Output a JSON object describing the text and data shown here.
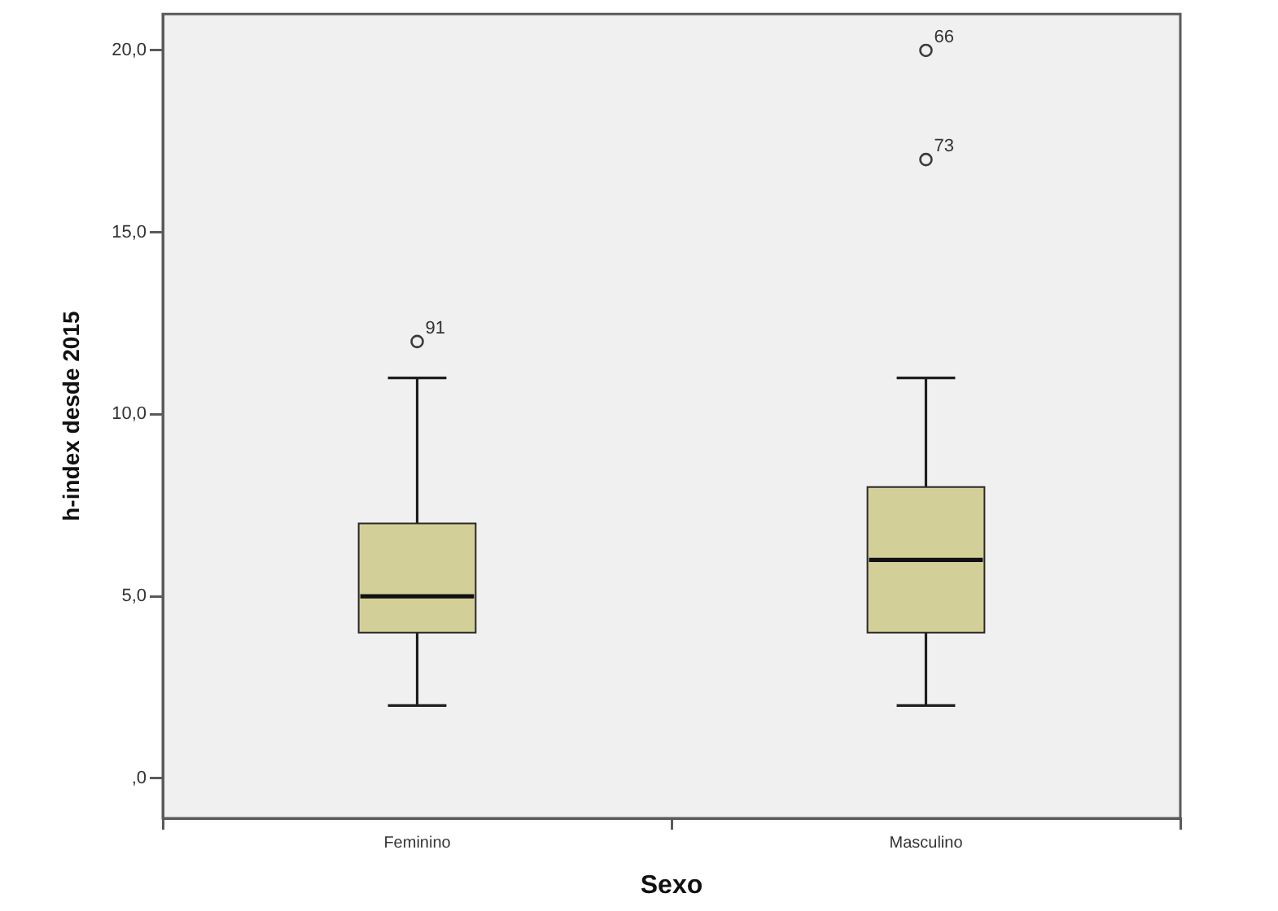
{
  "chart_data": {
    "type": "box",
    "xlabel": "Sexo",
    "ylabel": "h-index desde 2015",
    "categories": [
      "Feminino",
      "Masculino"
    ],
    "color": "#d3cf98",
    "boxes": [
      {
        "low": 2,
        "q1": 4,
        "median": 5,
        "q3": 7,
        "high": 11,
        "outliers": [
          12
        ]
      },
      {
        "low": 2,
        "q1": 4,
        "median": 6,
        "q3": 8,
        "high": 11,
        "outliers": [
          17,
          20
        ]
      }
    ],
    "ylim": [
      -1.1,
      21
    ],
    "yticks": [
      {
        "value": 0,
        "label": ",0"
      },
      {
        "value": 5,
        "label": "5,0"
      },
      {
        "value": 10,
        "label": "10,0"
      },
      {
        "value": 15,
        "label": "15,0"
      },
      {
        "value": 20,
        "label": "20,0"
      }
    ],
    "marker": "circle",
    "annotations": [
      "91",
      "73",
      "66"
    ]
  }
}
